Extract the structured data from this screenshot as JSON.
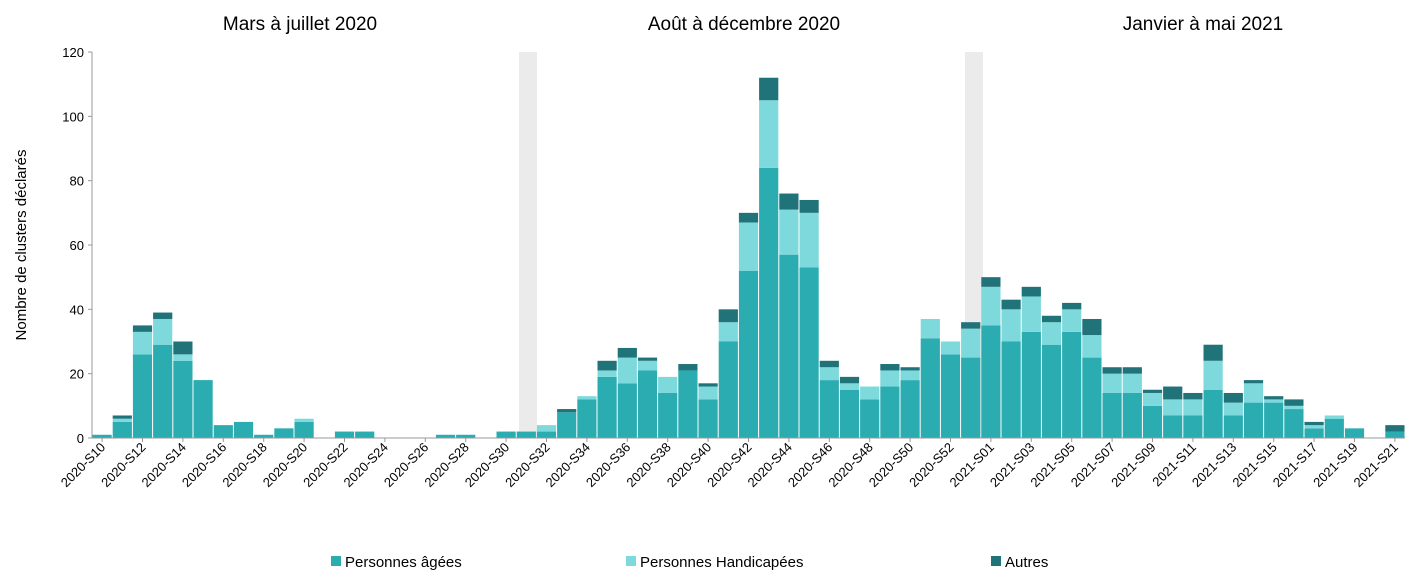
{
  "chart_data": {
    "type": "stacked_bar",
    "annotations": [
      "Mars à juillet 2020",
      "Août à décembre 2020",
      "Janvier à mai 2021"
    ],
    "ylabel": "Nombre de clusters déclarés",
    "categories": [
      "2020-S10",
      null,
      "2020-S12",
      null,
      "2020-S14",
      null,
      "2020-S16",
      null,
      "2020-S18",
      null,
      "2020-S20",
      null,
      "2020-S22",
      null,
      "2020-S24",
      null,
      "2020-S26",
      null,
      "2020-S28",
      null,
      "2020-S30",
      null,
      "2020-S32",
      null,
      "2020-S34",
      null,
      "2020-S36",
      null,
      "2020-S38",
      null,
      "2020-S40",
      null,
      "2020-S42",
      null,
      "2020-S44",
      null,
      "2020-S46",
      null,
      "2020-S48",
      null,
      "2020-S50",
      null,
      "2020-S52",
      null,
      "2021-S01",
      null,
      "2021-S03",
      null,
      "2021-S05",
      null,
      "2021-S07",
      null,
      "2021-S09",
      null,
      "2021-S11",
      null,
      "2021-S13",
      null,
      "2021-S15",
      null,
      "2021-S17",
      null,
      "2021-S19",
      null,
      "2021-S21"
    ],
    "series": [
      {
        "name": "Personnes âgées",
        "color": "#2aacb0",
        "values": [
          1,
          5,
          26,
          29,
          24,
          18,
          4,
          5,
          1,
          3,
          5,
          0,
          2,
          2,
          0,
          0,
          0,
          1,
          1,
          0,
          2,
          2,
          2,
          8,
          12,
          19,
          17,
          21,
          14,
          21,
          12,
          30,
          52,
          84,
          57,
          53,
          18,
          15,
          12,
          16,
          18,
          31,
          26,
          25,
          35,
          30,
          33,
          29,
          33,
          25,
          14,
          14,
          10,
          7,
          7,
          15,
          7,
          11,
          11,
          9,
          3,
          6,
          3,
          0,
          2
        ]
      },
      {
        "name": "Personnes  Handicapées",
        "color": "#7dd9dc",
        "values": [
          0,
          1,
          7,
          8,
          2,
          0,
          0,
          0,
          0,
          0,
          1,
          0,
          0,
          0,
          0,
          0,
          0,
          0,
          0,
          0,
          0,
          0,
          2,
          0,
          1,
          2,
          8,
          3,
          5,
          0,
          4,
          6,
          15,
          21,
          14,
          17,
          4,
          2,
          4,
          5,
          3,
          6,
          4,
          9,
          12,
          10,
          11,
          7,
          7,
          7,
          6,
          6,
          4,
          5,
          5,
          9,
          4,
          6,
          1,
          1,
          1,
          1,
          0,
          0,
          0
        ]
      },
      {
        "name": "Autres",
        "color": "#1f7379",
        "values": [
          0,
          1,
          2,
          2,
          4,
          0,
          0,
          0,
          0,
          0,
          0,
          0,
          0,
          0,
          0,
          0,
          0,
          0,
          0,
          0,
          0,
          0,
          0,
          1,
          0,
          3,
          3,
          1,
          0,
          2,
          1,
          4,
          3,
          7,
          5,
          4,
          2,
          2,
          0,
          2,
          1,
          0,
          0,
          2,
          3,
          3,
          3,
          2,
          2,
          5,
          2,
          2,
          1,
          4,
          2,
          5,
          3,
          1,
          1,
          2,
          1,
          0,
          0,
          0,
          2
        ]
      }
    ],
    "ylim": [
      0,
      120
    ],
    "yticks": [
      0,
      20,
      40,
      60,
      80,
      100,
      120
    ],
    "legend": "bottom"
  }
}
